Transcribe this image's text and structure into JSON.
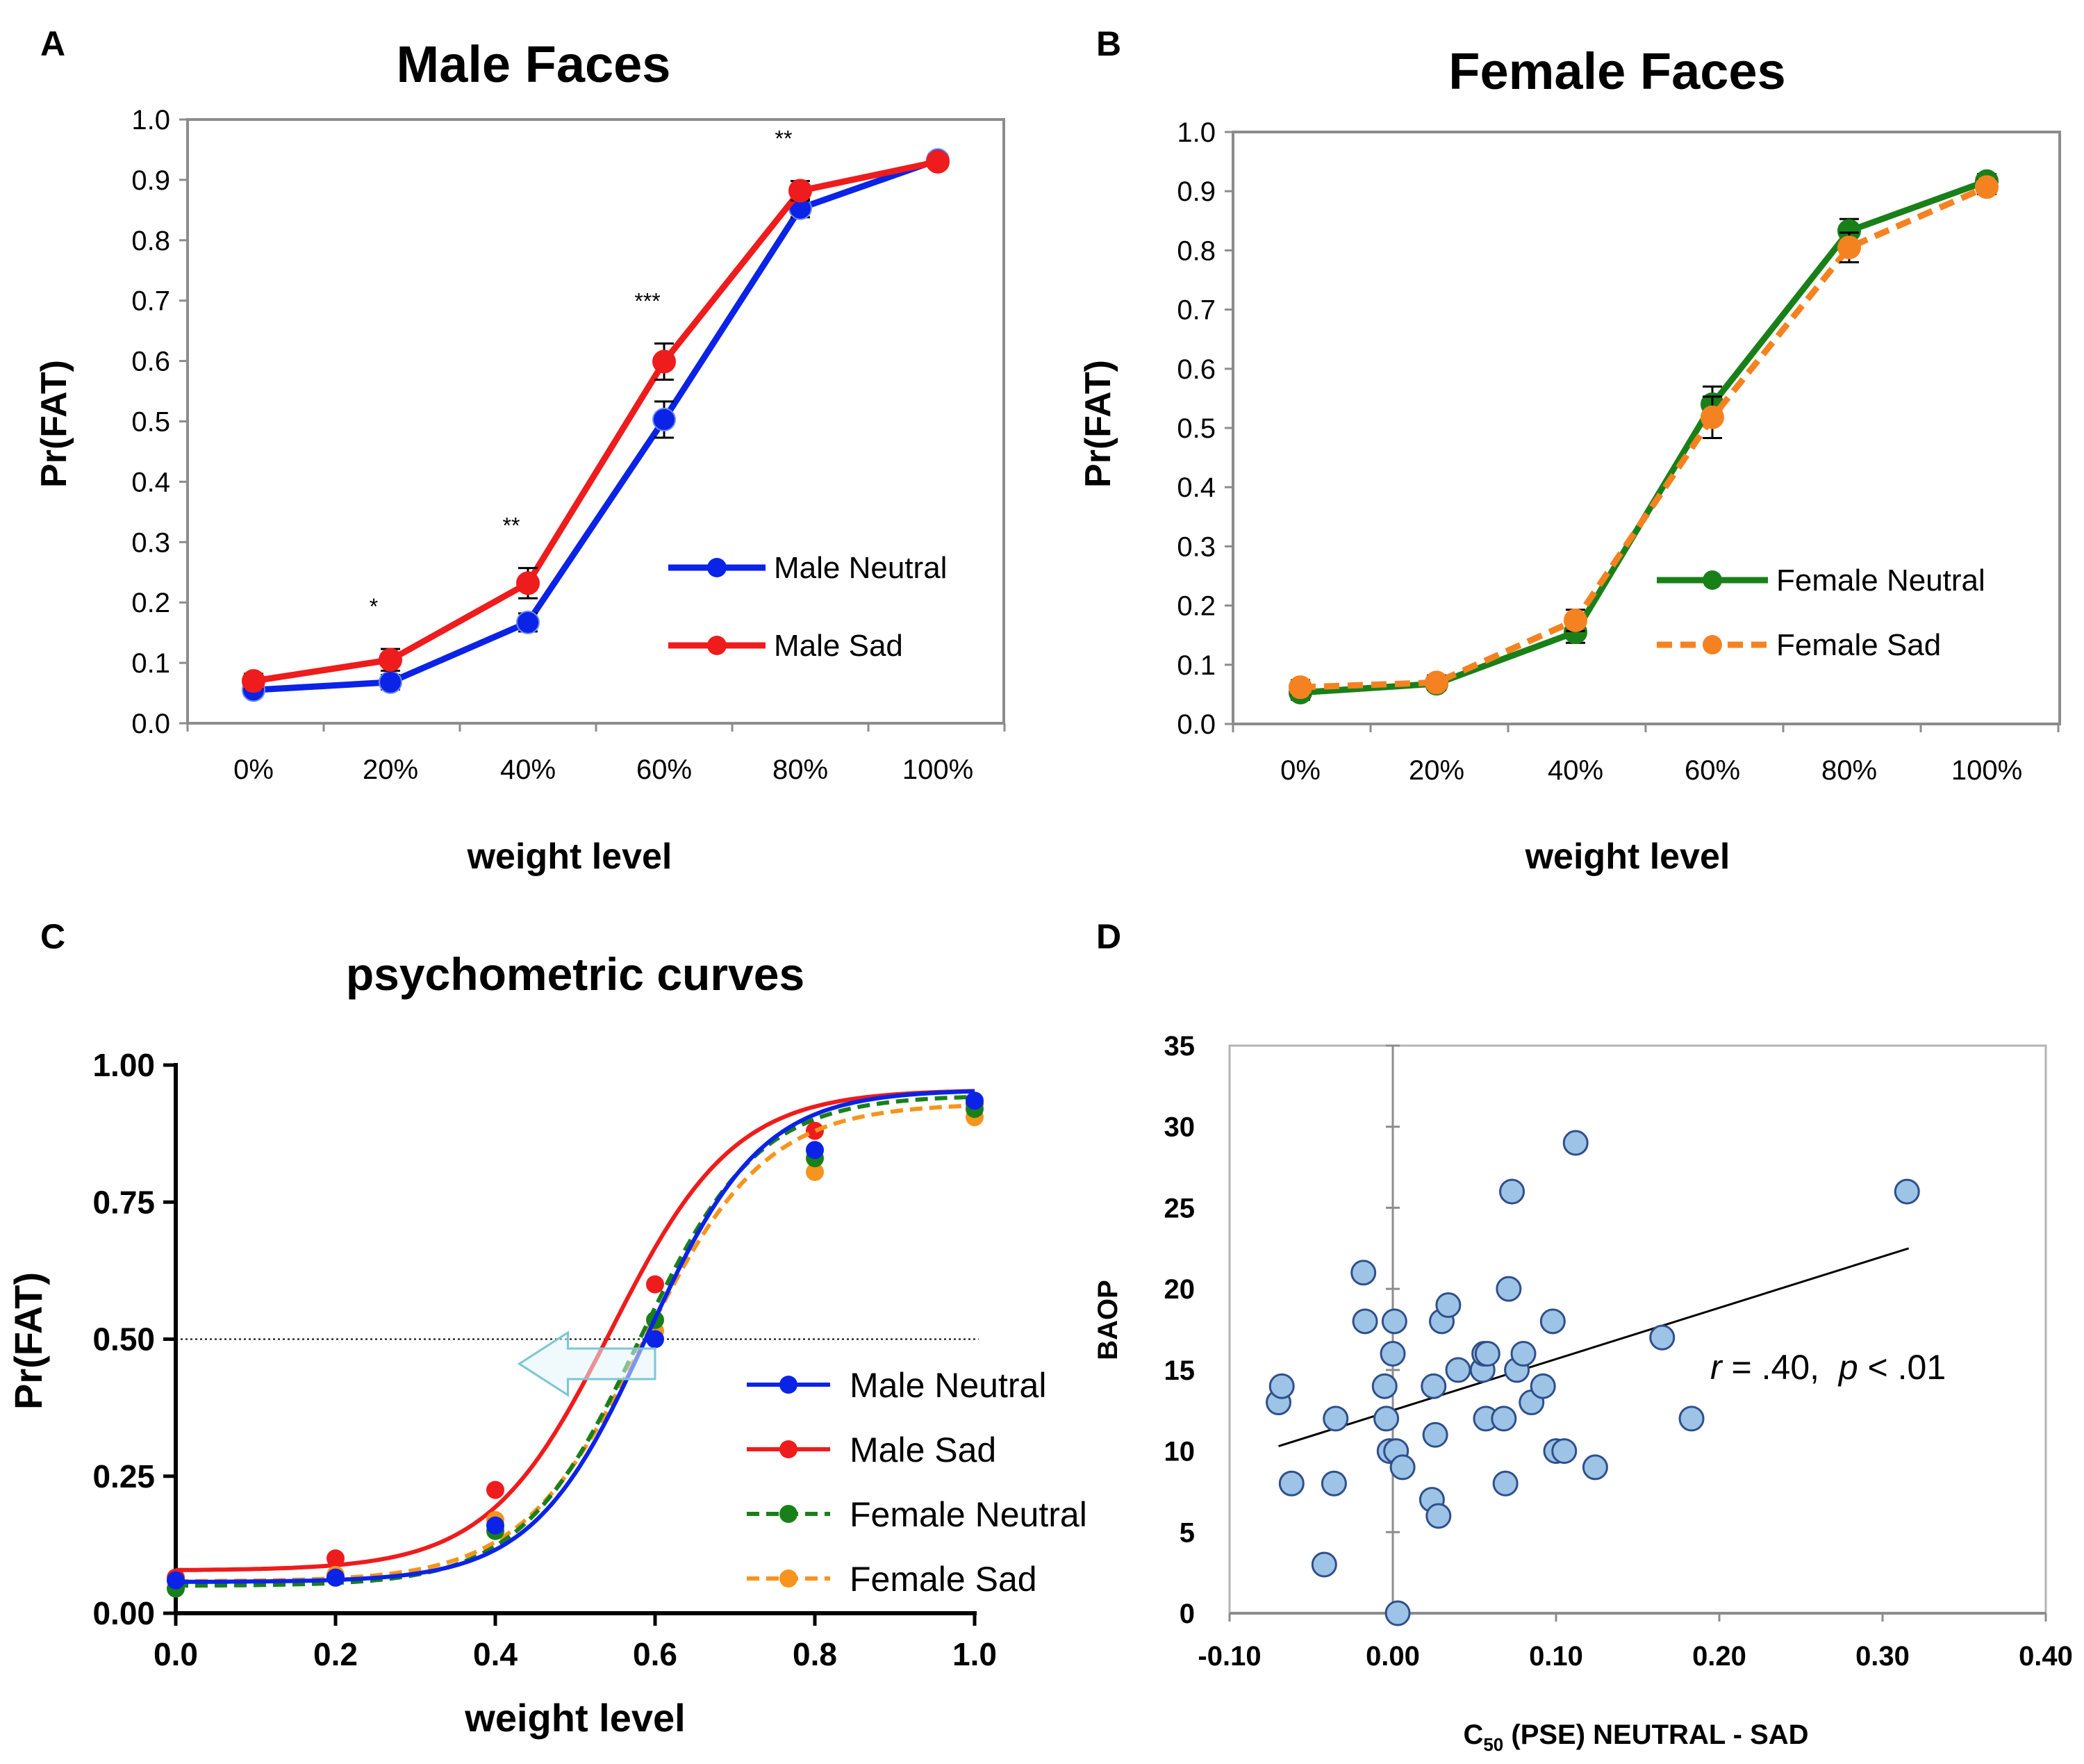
{
  "chart_data": [
    {
      "panel": "A",
      "type": "line",
      "title": "Male Faces",
      "xlabel": "weight level",
      "ylabel": "Pr(FAT)",
      "categories": [
        "0%",
        "20%",
        "40%",
        "60%",
        "80%",
        "100%"
      ],
      "ylim": [
        0,
        1
      ],
      "yticks": [
        "0.0",
        "0.1",
        "0.2",
        "0.3",
        "0.4",
        "0.5",
        "0.6",
        "0.7",
        "0.8",
        "0.9",
        "1.0"
      ],
      "series": [
        {
          "name": "Male Neutral",
          "color": "#0a23e6",
          "dashed": false,
          "values": [
            0.055,
            0.068,
            0.167,
            0.503,
            0.853,
            0.933
          ],
          "errors": [
            0.01,
            0.012,
            0.015,
            0.03,
            0.015,
            0.01
          ]
        },
        {
          "name": "Male Sad",
          "color": "#ee1c1c",
          "dashed": false,
          "values": [
            0.07,
            0.105,
            0.232,
            0.599,
            0.882,
            0.93
          ],
          "errors": [
            0.012,
            0.018,
            0.025,
            0.03,
            0.016,
            0.01
          ]
        }
      ],
      "significance": [
        {
          "category": "20%",
          "label": "*"
        },
        {
          "category": "40%",
          "label": "**"
        },
        {
          "category": "60%",
          "label": "***"
        },
        {
          "category": "80%",
          "label": "**"
        }
      ]
    },
    {
      "panel": "B",
      "type": "line",
      "title": "Female Faces",
      "xlabel": "weight level",
      "ylabel": "Pr(FAT)",
      "categories": [
        "0%",
        "20%",
        "40%",
        "60%",
        "80%",
        "100%"
      ],
      "ylim": [
        0,
        1
      ],
      "yticks": [
        "0.0",
        "0.1",
        "0.2",
        "0.3",
        "0.4",
        "0.5",
        "0.6",
        "0.7",
        "0.8",
        "0.9",
        "1.0"
      ],
      "series": [
        {
          "name": "Female Neutral",
          "color": "#198019",
          "dashed": false,
          "values": [
            0.053,
            0.068,
            0.155,
            0.54,
            0.833,
            0.917
          ],
          "errors": [
            0.012,
            0.01,
            0.018,
            0.03,
            0.02,
            0.012
          ]
        },
        {
          "name": "Female Sad",
          "color": "#f58220",
          "dashed": true,
          "values": [
            0.062,
            0.07,
            0.175,
            0.518,
            0.805,
            0.907
          ],
          "errors": [
            0.012,
            0.012,
            0.018,
            0.035,
            0.025,
            0.012
          ]
        }
      ]
    },
    {
      "panel": "C",
      "type": "line",
      "title": "psychometric curves",
      "xlabel": "weight level",
      "ylabel": "Pr(FAT)",
      "xlim": [
        0,
        1
      ],
      "ylim": [
        0,
        1
      ],
      "xticks": [
        "0.0",
        "0.2",
        "0.4",
        "0.6",
        "0.8",
        "1.0"
      ],
      "yticks": [
        "0.00",
        "0.25",
        "0.50",
        "0.75",
        "1.00"
      ],
      "reference_line_y": 0.5,
      "x": [
        0,
        0.2,
        0.4,
        0.6,
        0.8,
        1.0
      ],
      "series": [
        {
          "name": "Male Neutral",
          "color": "#0a23e6",
          "dashed": false,
          "points": [
            0.06,
            0.065,
            0.16,
            0.5,
            0.845,
            0.935
          ],
          "curve": {
            "bottom": 0.057,
            "top": 0.955,
            "c50": 0.59,
            "slope": 14
          }
        },
        {
          "name": "Male Sad",
          "color": "#ee1c1c",
          "dashed": false,
          "points": [
            0.065,
            0.1,
            0.225,
            0.6,
            0.88,
            0.93
          ],
          "curve": {
            "bottom": 0.078,
            "top": 0.955,
            "c50": 0.545,
            "slope": 13
          }
        },
        {
          "name": "Female Neutral",
          "color": "#198019",
          "dashed": true,
          "points": [
            0.045,
            0.065,
            0.15,
            0.535,
            0.83,
            0.92
          ],
          "curve": {
            "bottom": 0.05,
            "top": 0.945,
            "c50": 0.58,
            "slope": 13.5
          }
        },
        {
          "name": "Female Sad",
          "color": "#f7941d",
          "dashed": true,
          "points": [
            0.06,
            0.07,
            0.17,
            0.515,
            0.805,
            0.905
          ],
          "curve": {
            "bottom": 0.058,
            "top": 0.93,
            "c50": 0.585,
            "slope": 13
          }
        }
      ],
      "arrow_annotation": {
        "from_x": 0.6,
        "to_x": 0.43,
        "y": 0.455,
        "color": "#a8dce6"
      }
    },
    {
      "panel": "D",
      "type": "scatter",
      "xlabel_main": "C",
      "xlabel_sub": "50",
      "xlabel_rest": " (PSE) NEUTRAL - SAD",
      "ylabel": "BAOP",
      "xlim": [
        -0.1,
        0.4
      ],
      "ylim": [
        0,
        35
      ],
      "xticks": [
        "-0.10",
        "0.00",
        "0.10",
        "0.20",
        "0.30",
        "0.40"
      ],
      "yticks": [
        "0",
        "5",
        "10",
        "15",
        "20",
        "25",
        "30",
        "35"
      ],
      "point_color": "#9dc3e6",
      "points": [
        [
          -0.07,
          13
        ],
        [
          -0.068,
          14
        ],
        [
          -0.062,
          8
        ],
        [
          -0.042,
          3
        ],
        [
          -0.036,
          8
        ],
        [
          -0.035,
          12
        ],
        [
          -0.018,
          21
        ],
        [
          -0.017,
          18
        ],
        [
          -0.005,
          14
        ],
        [
          -0.004,
          12
        ],
        [
          -0.002,
          10
        ],
        [
          0.0,
          16
        ],
        [
          0.001,
          18
        ],
        [
          0.002,
          10
        ],
        [
          0.003,
          0
        ],
        [
          0.006,
          9
        ],
        [
          0.024,
          7
        ],
        [
          0.025,
          14
        ],
        [
          0.026,
          11
        ],
        [
          0.028,
          6
        ],
        [
          0.03,
          18
        ],
        [
          0.034,
          19
        ],
        [
          0.04,
          15
        ],
        [
          0.055,
          15
        ],
        [
          0.056,
          16
        ],
        [
          0.057,
          12
        ],
        [
          0.058,
          16
        ],
        [
          0.068,
          12
        ],
        [
          0.069,
          8
        ],
        [
          0.071,
          20
        ],
        [
          0.073,
          26
        ],
        [
          0.076,
          15
        ],
        [
          0.08,
          16
        ],
        [
          0.085,
          13
        ],
        [
          0.092,
          14
        ],
        [
          0.098,
          18
        ],
        [
          0.1,
          10
        ],
        [
          0.105,
          10
        ],
        [
          0.112,
          29
        ],
        [
          0.124,
          9
        ],
        [
          0.165,
          17
        ],
        [
          0.183,
          12
        ],
        [
          0.315,
          26
        ]
      ],
      "regression": {
        "x1": -0.07,
        "y1": 10.3,
        "x2": 0.316,
        "y2": 22.5
      },
      "annotation": {
        "r_label": "r",
        "r_value": " = .40,  ",
        "p_label": "p",
        "p_value": " < .01"
      }
    }
  ],
  "panel_letters": {
    "a": "A",
    "b": "B",
    "c": "C",
    "d": "D"
  }
}
